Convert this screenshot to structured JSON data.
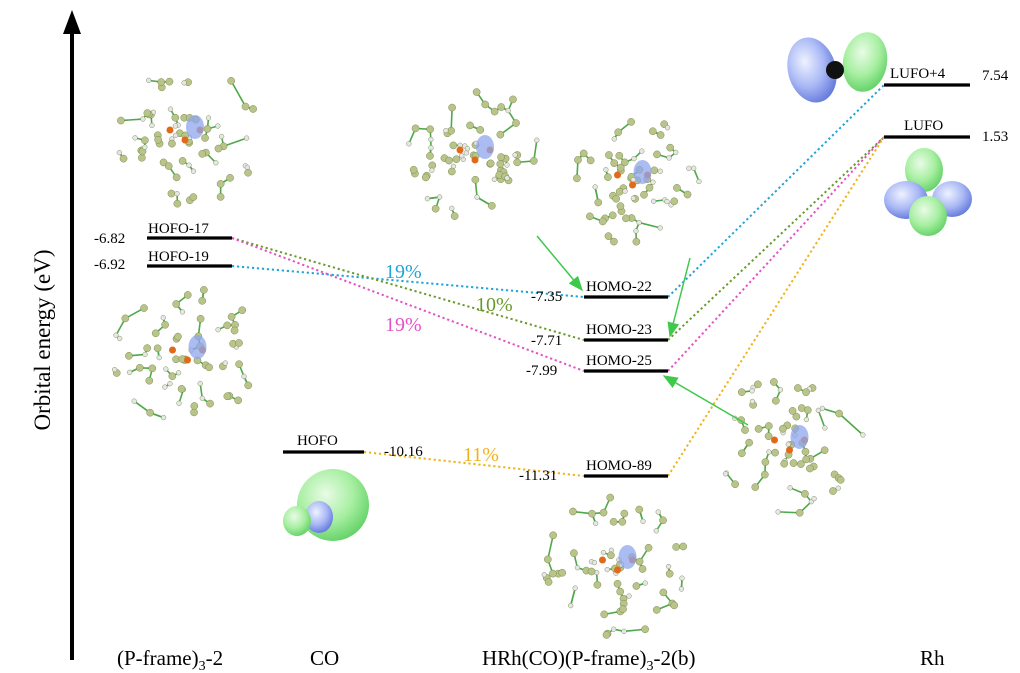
{
  "y_axis_label": "Orbital energy (eV)",
  "columns": {
    "pframe": {
      "main": "(P-frame)",
      "sub": "3",
      "suffix": "-2"
    },
    "co": "CO",
    "complex": {
      "main": "HRh(CO)(P-frame)",
      "sub": "3",
      "suffix": "-2(b)"
    },
    "rh": "Rh"
  },
  "levels": {
    "hofo17": {
      "label": "HOFO-17",
      "energy": "-6.82"
    },
    "hofo19": {
      "label": "HOFO-19",
      "energy": "-6.92"
    },
    "hofo_co": {
      "label": "HOFO",
      "energy": "-10.16"
    },
    "homo22": {
      "label": "HOMO-22",
      "energy": "-7.35"
    },
    "homo23": {
      "label": "HOMO-23",
      "energy": "-7.71"
    },
    "homo25": {
      "label": "HOMO-25",
      "energy": "-7.99"
    },
    "homo89": {
      "label": "HOMO-89",
      "energy": "-11.31"
    },
    "lufo4": {
      "label": "LUFO+4",
      "energy": "7.54"
    },
    "lufo": {
      "label": "LUFO",
      "energy": "1.53"
    }
  },
  "contributions": {
    "blue": {
      "text": "19%",
      "color": "#1fa3d8"
    },
    "green": {
      "text": "10%",
      "color": "#6a9a2a"
    },
    "pink": {
      "text": "19%",
      "color": "#e551c4"
    },
    "orange": {
      "text": "11%",
      "color": "#f0b21a"
    }
  }
}
